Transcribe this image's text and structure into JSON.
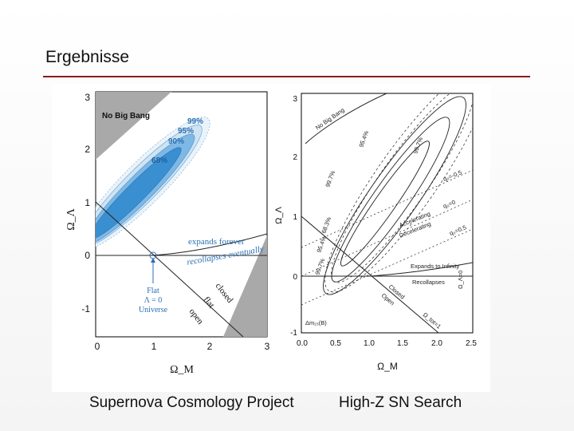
{
  "slide": {
    "title": "Ergebnisse",
    "caption_left": "Supernova Cosmology Project",
    "caption_right": "High-Z SN Search"
  },
  "colors": {
    "title_rule": "#8a1c1c",
    "no_big_bang_region": "#a9a9a9",
    "contour_68": "#3a8fd1",
    "contour_90": "#7fb8e4",
    "contour_outer": "#cfe3f2",
    "annotation_blue": "#2a6fb3"
  },
  "chart_data": [
    {
      "type": "contour",
      "panel": "Supernova Cosmology Project",
      "xlabel": "Ω_M",
      "ylabel": "Ω_Λ",
      "xlim": [
        0,
        3
      ],
      "ylim": [
        -1.6,
        3
      ],
      "xticks": [
        "0",
        "1",
        "2",
        "3"
      ],
      "yticks": [
        "-1",
        "0",
        "1",
        "2",
        "3"
      ],
      "confidence_labels": [
        "68%",
        "90%",
        "95%",
        "99%"
      ],
      "region_labels": [
        "No Big Bang"
      ],
      "annotations": [
        "expands forever",
        "recollapses eventually",
        "closed",
        "flat",
        "open"
      ],
      "flat_universe_label": [
        "Flat",
        "Λ = 0",
        "Universe"
      ],
      "best_fit_ellipse": {
        "center": [
          0.85,
          1.25
        ],
        "semi_axes": [
          1.35,
          0.22
        ],
        "angle_deg": 52
      },
      "flat_line": [
        [
          0,
          1
        ],
        [
          2.6,
          -1.6
        ]
      ],
      "flat_lambda0_point": [
        1,
        0
      ]
    },
    {
      "type": "contour",
      "panel": "High-Z SN Search",
      "xlabel": "Ω_M",
      "ylabel": "Ω_Λ",
      "xlim": [
        0,
        2.5
      ],
      "ylim": [
        -1,
        3
      ],
      "xticks": [
        "0.0",
        "0.5",
        "1.0",
        "1.5",
        "2.0",
        "2.5"
      ],
      "yticks": [
        "-1",
        "0",
        "1",
        "2",
        "3"
      ],
      "confidence_labels": [
        "68.3%",
        "95.4%",
        "99.7%",
        "95.4%",
        "99.7%"
      ],
      "region_labels": [
        "No Big Bang"
      ],
      "annotations": [
        "Accelerating",
        "Decelerating",
        "Expands to Infinity",
        "Recollapses",
        "Closed",
        "Open",
        "Ω_tot=1",
        "q₀=-0.5",
        "q₀=0",
        "q₀=0.5",
        "Ω_Λ=0",
        "Δm₁₅(B)"
      ],
      "flat_line": [
        [
          0,
          1
        ],
        [
          2,
          -1
        ]
      ]
    }
  ]
}
